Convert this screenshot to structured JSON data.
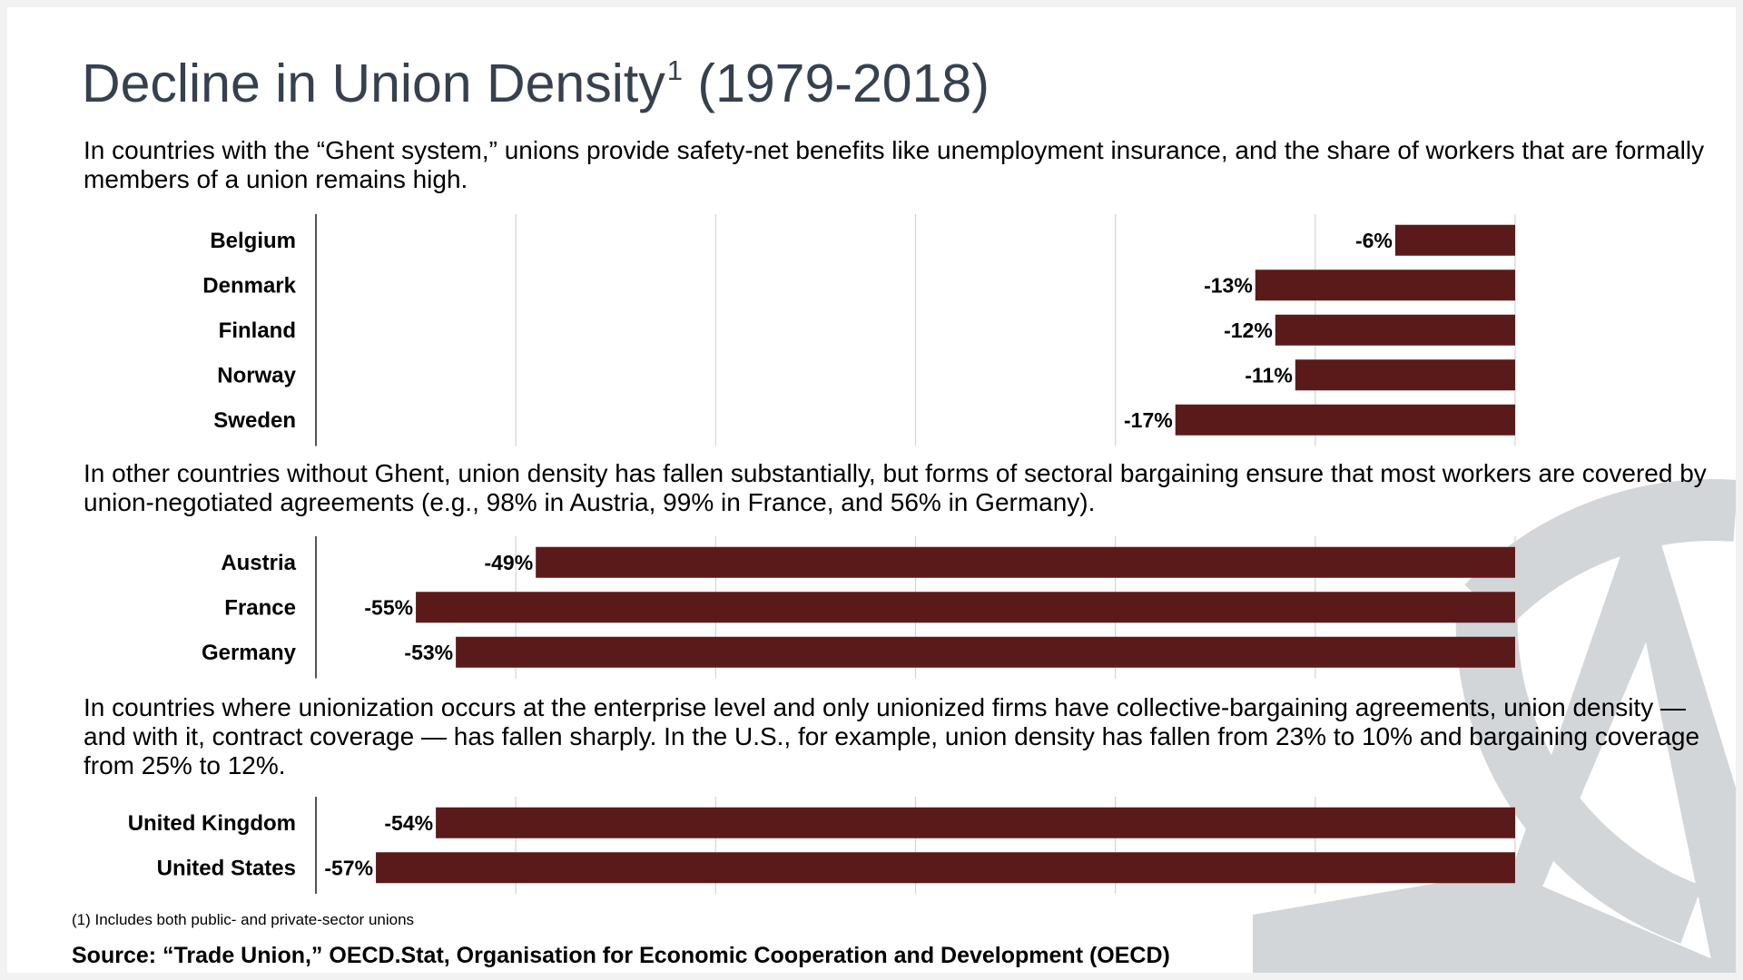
{
  "header": {
    "title": "Decline in Union Density",
    "title_sup": "1",
    "title_years": "(1979-2018)"
  },
  "sections": [
    {
      "text": "In countries with the “Ghent system,” unions provide safety-net benefits like unemployment insurance, and the share of workers that are formally members of a union remains high."
    },
    {
      "text": "In other countries without Ghent, union density has fallen substantially, but forms of sectoral bargaining ensure that most workers are covered by union-negotiated agreements (e.g., 98% in Austria, 99% in France, and 56% in Germany)."
    },
    {
      "text": "In countries where unionization occurs at the enterprise level and only unionized firms have collective-bargaining agreements, union density — and with it, contract coverage — has fallen sharply. In the U.S., for example, union density has fallen from 23% to 10% and bargaining coverage from 25% to 12%."
    }
  ],
  "colors": {
    "bar": "#5b1a1a",
    "logo": "#d3d6d9"
  },
  "chart_data": [
    {
      "type": "bar",
      "orientation": "horizontal",
      "xlim": [
        -60,
        0
      ],
      "grid": true,
      "categories": [
        "Belgium",
        "Denmark",
        "Finland",
        "Norway",
        "Sweden"
      ],
      "values": [
        -6,
        -13,
        -12,
        -11,
        -17
      ],
      "labels": [
        "-6%",
        "-13%",
        "-12%",
        "-11%",
        "-17%"
      ]
    },
    {
      "type": "bar",
      "orientation": "horizontal",
      "xlim": [
        -60,
        0
      ],
      "grid": true,
      "categories": [
        "Austria",
        "France",
        "Germany"
      ],
      "values": [
        -49,
        -55,
        -53
      ],
      "labels": [
        "-49%",
        "-55%",
        "-53%"
      ]
    },
    {
      "type": "bar",
      "orientation": "horizontal",
      "xlim": [
        -60,
        0
      ],
      "grid": true,
      "categories": [
        "United Kingdom",
        "United States"
      ],
      "values": [
        -54,
        -57
      ],
      "labels": [
        "-54%",
        "-57%"
      ]
    }
  ],
  "footer": {
    "footnote": "(1) Includes both public- and private-sector unions",
    "source": "Source: “Trade Union,” OECD.Stat, Organisation for Economic Cooperation and Development (OECD)"
  }
}
